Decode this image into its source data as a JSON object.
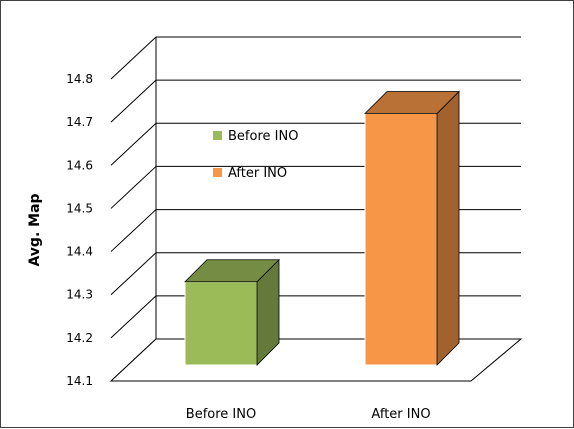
{
  "chart_data": {
    "type": "bar",
    "categories": [
      "Before INO",
      "After INO"
    ],
    "values": [
      14.33,
      14.72
    ],
    "colors": [
      "#9BBB59",
      "#F79646"
    ],
    "series": [
      {
        "name": "Before INO",
        "values": [
          14.33,
          null
        ],
        "color": "#9BBB59"
      },
      {
        "name": "After INO",
        "values": [
          null,
          14.72
        ],
        "color": "#F79646"
      }
    ],
    "title": "",
    "xlabel": "",
    "ylabel": "Avg. Map",
    "ylim": [
      14.1,
      14.8
    ],
    "yticks": [
      "14.1",
      "14.2",
      "14.3",
      "14.4",
      "14.5",
      "14.6",
      "14.7",
      "14.8"
    ],
    "grid": true,
    "legend_position": "inside-left",
    "style": "3d-column"
  }
}
